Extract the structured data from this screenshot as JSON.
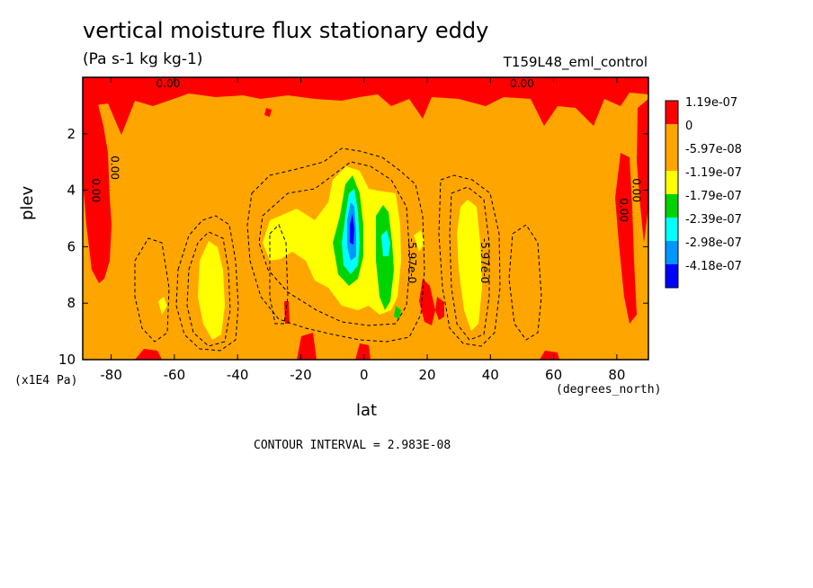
{
  "title": "vertical moisture flux stationary eddy",
  "units": "(Pa s-1 kg kg-1)",
  "run": "T159L48_eml_control",
  "contour_interval": "CONTOUR INTERVAL = 2.983E-08",
  "colors": {
    "above_1.19e-07": "#ff0000",
    "0": "#ffa500",
    "-5.97e-08": "#ffa500",
    "-1.19e-07": "#ffff00",
    "-1.79e-07": "#00d400",
    "-2.39e-07": "#00ffff",
    "-2.98e-07": "#0096ff",
    "-4.18e-07": "#0000ff"
  },
  "chart_data": {
    "type": "heatmap",
    "xlabel": "lat",
    "xunit": "(degrees_north)",
    "ylabel": "plev",
    "yunit": "(x1E4 Pa)",
    "xlim": [
      -89,
      90
    ],
    "ylim": [
      10,
      0
    ],
    "xticks": [
      -80,
      -60,
      -40,
      -20,
      0,
      20,
      40,
      60,
      80
    ],
    "yticks": [
      2,
      4,
      6,
      8,
      10
    ],
    "legend": {
      "placement": "right",
      "levels": [
        {
          "label": "1.19e-07",
          "color": "#ff0000"
        },
        {
          "label": "0",
          "color": "#ffa500"
        },
        {
          "label": "-5.97e-08",
          "color": "#ffa500"
        },
        {
          "label": "-1.19e-07",
          "color": "#ffff00"
        },
        {
          "label": "-1.79e-07",
          "color": "#00d400"
        },
        {
          "label": "-2.39e-07",
          "color": "#00ffff"
        },
        {
          "label": "-2.98e-07",
          "color": "#0096ff"
        },
        {
          "label": "-4.18e-07",
          "color": "#0000ff"
        }
      ]
    },
    "contour_labels": [
      {
        "text": "0.00",
        "lat": -62,
        "plev": 0.35
      },
      {
        "text": "0.00",
        "lat": 50,
        "plev": 0.35
      },
      {
        "text": "0.00",
        "lat": -86,
        "plev": 4.0
      },
      {
        "text": "0.00",
        "lat": -80,
        "plev": 3.2
      },
      {
        "text": "0.00",
        "lat": 81,
        "plev": 4.7
      },
      {
        "text": "0.00",
        "lat": 85,
        "plev": 4.0
      },
      {
        "text": "-5.97e-0",
        "lat": 14,
        "plev": 6.5
      },
      {
        "text": "-5.97e-0",
        "lat": 37,
        "plev": 6.5
      }
    ],
    "regions": {
      "negative_cores": [
        {
          "lat": -5,
          "plev": 5.6,
          "min": "-4.18e-07"
        },
        {
          "lat": 7,
          "plev": 6.0,
          "min": "-2.39e-07"
        },
        {
          "lat": -48,
          "plev": 7.6,
          "min": "-1.19e-07"
        },
        {
          "lat": 33,
          "plev": 6.8,
          "min": "-1.19e-07"
        }
      ],
      "positive_bands": [
        {
          "lat_range": [
            -89,
            90
          ],
          "plev_range": [
            0,
            1.2
          ],
          "value": "1.19e-07"
        },
        {
          "lat_range": [
            -89,
            -83
          ],
          "plev_range": [
            0,
            7.0
          ],
          "value": "1.19e-07"
        },
        {
          "lat_range": [
            78,
            90
          ],
          "plev_range": [
            2.5,
            9.0
          ],
          "value": "1.19e-07"
        }
      ]
    }
  }
}
